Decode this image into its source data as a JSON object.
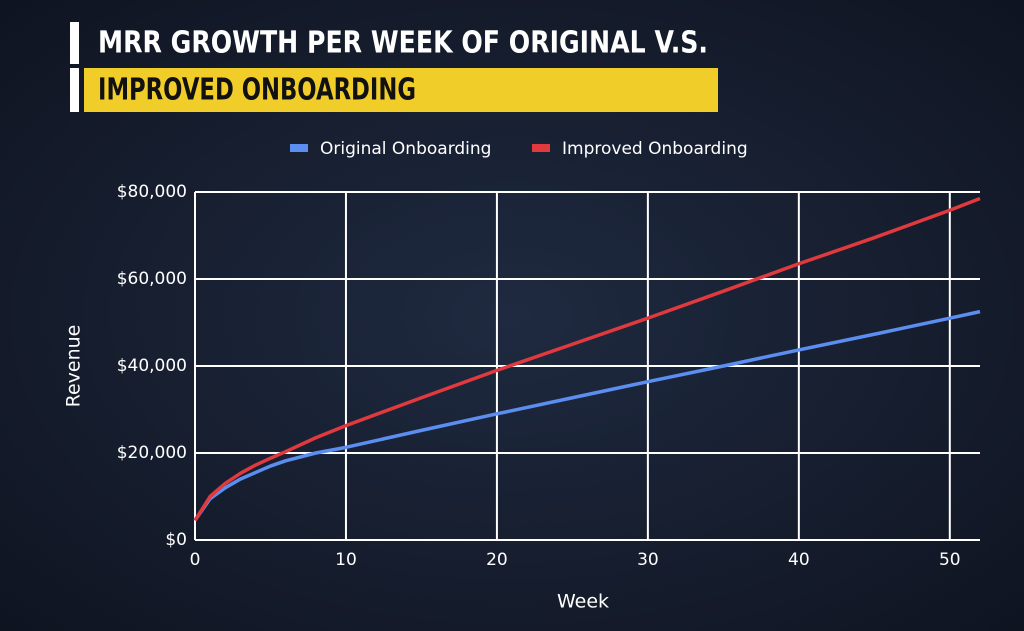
{
  "chart_data": {
    "type": "line",
    "title": [
      "MRR GROWTH PER WEEK OF ORIGINAL V.S.",
      "IMPROVED ONBOARDING"
    ],
    "x_label": "Week",
    "y_label": "Revenue",
    "x": [
      0,
      1,
      2,
      3,
      4,
      5,
      6,
      8,
      10,
      15,
      20,
      25,
      30,
      35,
      40,
      45,
      50,
      52
    ],
    "series": [
      {
        "name": "Original Onboarding",
        "color": "#5b8ef0",
        "values": [
          4500,
          9500,
          12000,
          14000,
          15500,
          17000,
          18200,
          20000,
          21300,
          25200,
          29000,
          32700,
          36400,
          40000,
          43700,
          47300,
          51000,
          52500
        ]
      },
      {
        "name": "Improved Onboarding",
        "color": "#e0393e",
        "values": [
          4500,
          10000,
          13000,
          15300,
          17200,
          18800,
          20300,
          23500,
          26300,
          32700,
          39000,
          45000,
          51000,
          57200,
          63500,
          69500,
          75800,
          78500
        ]
      }
    ],
    "xlim": [
      0,
      52
    ],
    "xticks": [
      0,
      10,
      20,
      30,
      40,
      50
    ],
    "ylim": [
      0,
      80000
    ],
    "yticks": [
      {
        "value": 0,
        "label": "$0"
      },
      {
        "value": 20000,
        "label": "$20,000"
      },
      {
        "value": 40000,
        "label": "$40,000"
      },
      {
        "value": 60000,
        "label": "$60,000"
      },
      {
        "value": 80000,
        "label": "$80,000"
      }
    ],
    "grid": true,
    "legend": "top"
  }
}
